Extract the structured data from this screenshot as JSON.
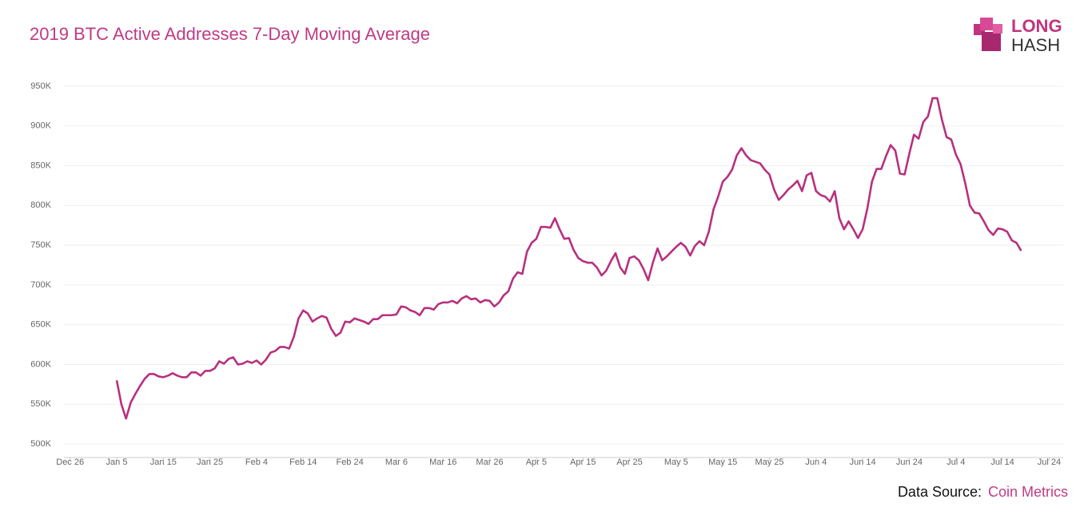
{
  "chart_data": {
    "type": "line",
    "title": "2019 BTC Active Addresses 7-Day Moving Average",
    "logo": [
      "LONG",
      "HASH"
    ],
    "source_label": "Data Source:",
    "source_name": "Coin Metrics",
    "grid": true,
    "ylim": [
      483000,
      960000
    ],
    "yticks": [
      {
        "value": 500000,
        "label": "500K"
      },
      {
        "value": 550000,
        "label": "550K"
      },
      {
        "value": 600000,
        "label": "600K"
      },
      {
        "value": 650000,
        "label": "650K"
      },
      {
        "value": 700000,
        "label": "700K"
      },
      {
        "value": 750000,
        "label": "750K"
      },
      {
        "value": 800000,
        "label": "800K"
      },
      {
        "value": 850000,
        "label": "850K"
      },
      {
        "value": 900000,
        "label": "900K"
      },
      {
        "value": 950000,
        "label": "950K"
      }
    ],
    "xticks": [
      "Dec 26",
      "Jan 5",
      "Jan 15",
      "Jan 25",
      "Feb 4",
      "Feb 14",
      "Feb 24",
      "Mar 6",
      "Mar 16",
      "Mar 26",
      "Apr 5",
      "Apr 15",
      "Apr 25",
      "May 5",
      "May 15",
      "May 25",
      "Jun 4",
      "Jun 14",
      "Jun 24",
      "Jul 4",
      "Jul 14",
      "Jul 24"
    ],
    "x": [
      "Jan 5",
      "Jan 6",
      "Jan 7",
      "Jan 8",
      "Jan 9",
      "Jan 10",
      "Jan 11",
      "Jan 12",
      "Jan 13",
      "Jan 14",
      "Jan 15",
      "Jan 16",
      "Jan 17",
      "Jan 18",
      "Jan 19",
      "Jan 20",
      "Jan 21",
      "Jan 22",
      "Jan 23",
      "Jan 24",
      "Jan 25",
      "Jan 26",
      "Jan 27",
      "Jan 28",
      "Jan 29",
      "Jan 30",
      "Jan 31",
      "Feb 1",
      "Feb 2",
      "Feb 3",
      "Feb 4",
      "Feb 5",
      "Feb 6",
      "Feb 7",
      "Feb 8",
      "Feb 9",
      "Feb 10",
      "Feb 11",
      "Feb 12",
      "Feb 13",
      "Feb 14",
      "Feb 15",
      "Feb 16",
      "Feb 17",
      "Feb 18",
      "Feb 19",
      "Feb 20",
      "Feb 21",
      "Feb 22",
      "Feb 23",
      "Feb 24",
      "Feb 25",
      "Feb 26",
      "Feb 27",
      "Feb 28",
      "Mar 1",
      "Mar 2",
      "Mar 3",
      "Mar 4",
      "Mar 5",
      "Mar 6",
      "Mar 7",
      "Mar 8",
      "Mar 9",
      "Mar 10",
      "Mar 11",
      "Mar 12",
      "Mar 13",
      "Mar 14",
      "Mar 15",
      "Mar 16",
      "Mar 17",
      "Mar 18",
      "Mar 19",
      "Mar 20",
      "Mar 21",
      "Mar 22",
      "Mar 23",
      "Mar 24",
      "Mar 25",
      "Mar 26",
      "Mar 27",
      "Mar 28",
      "Mar 29",
      "Mar 30",
      "Mar 31",
      "Apr 1",
      "Apr 2",
      "Apr 3",
      "Apr 4",
      "Apr 5",
      "Apr 6",
      "Apr 7",
      "Apr 8",
      "Apr 9",
      "Apr 10",
      "Apr 11",
      "Apr 12",
      "Apr 13",
      "Apr 14",
      "Apr 15",
      "Apr 16",
      "Apr 17",
      "Apr 18",
      "Apr 19",
      "Apr 20",
      "Apr 21",
      "Apr 22",
      "Apr 23",
      "Apr 24",
      "Apr 25",
      "Apr 26",
      "Apr 27",
      "Apr 28",
      "Apr 29",
      "Apr 30",
      "May 1",
      "May 2",
      "May 3",
      "May 4",
      "May 5",
      "May 6",
      "May 7",
      "May 8",
      "May 9",
      "May 10",
      "May 11",
      "May 12",
      "May 13",
      "May 14",
      "May 15",
      "May 16",
      "May 17",
      "May 18",
      "May 19",
      "May 20",
      "May 21",
      "May 22",
      "May 23",
      "May 24",
      "May 25",
      "May 26",
      "May 27",
      "May 28",
      "May 29",
      "May 30",
      "May 31",
      "Jun 1",
      "Jun 2",
      "Jun 3",
      "Jun 4",
      "Jun 5",
      "Jun 6",
      "Jun 7",
      "Jun 8",
      "Jun 9",
      "Jun 10",
      "Jun 11",
      "Jun 12",
      "Jun 13",
      "Jun 14",
      "Jun 15",
      "Jun 16",
      "Jun 17",
      "Jun 18",
      "Jun 19",
      "Jun 20",
      "Jun 21",
      "Jun 22",
      "Jun 23",
      "Jun 24",
      "Jun 25",
      "Jun 26",
      "Jun 27",
      "Jun 28",
      "Jun 29",
      "Jun 30",
      "Jul 1",
      "Jul 2",
      "Jul 3",
      "Jul 4",
      "Jul 5",
      "Jul 6",
      "Jul 7",
      "Jul 8",
      "Jul 9",
      "Jul 10",
      "Jul 11",
      "Jul 12",
      "Jul 13",
      "Jul 14",
      "Jul 15",
      "Jul 16",
      "Jul 17",
      "Jul 18"
    ],
    "series": [
      {
        "color": "#b8307e",
        "values": [
          580000,
          550000,
          532000,
          552000,
          563000,
          573000,
          582000,
          588000,
          588000,
          585000,
          584000,
          586000,
          589000,
          586000,
          584000,
          584000,
          590000,
          590000,
          586000,
          592000,
          592000,
          595000,
          604000,
          601000,
          607000,
          609000,
          600000,
          601000,
          604000,
          602000,
          605000,
          600000,
          606000,
          615000,
          617000,
          622000,
          622000,
          620000,
          635000,
          658000,
          668000,
          664000,
          654000,
          658000,
          661000,
          659000,
          645000,
          636000,
          640000,
          654000,
          653000,
          658000,
          656000,
          654000,
          651000,
          657000,
          657000,
          662000,
          662000,
          662000,
          663000,
          673000,
          672000,
          668000,
          666000,
          662000,
          671000,
          671000,
          669000,
          676000,
          678000,
          678000,
          680000,
          677000,
          683000,
          686000,
          682000,
          683000,
          678000,
          681000,
          680000,
          673000,
          678000,
          687000,
          692000,
          708000,
          716000,
          714000,
          742000,
          753000,
          758000,
          773000,
          773000,
          772000,
          784000,
          770000,
          758000,
          759000,
          744000,
          734000,
          730000,
          728000,
          728000,
          722000,
          712000,
          718000,
          730000,
          740000,
          722000,
          714000,
          734000,
          736000,
          731000,
          720000,
          706000,
          728000,
          746000,
          731000,
          736000,
          742000,
          748000,
          753000,
          748000,
          737000,
          749000,
          755000,
          750000,
          767000,
          795000,
          811000,
          830000,
          836000,
          845000,
          863000,
          872000,
          863000,
          857000,
          855000,
          853000,
          845000,
          839000,
          820000,
          807000,
          813000,
          820000,
          825000,
          831000,
          818000,
          838000,
          841000,
          818000,
          813000,
          811000,
          805000,
          818000,
          784000,
          770000,
          780000,
          770000,
          759000,
          770000,
          796000,
          830000,
          846000,
          846000,
          862000,
          876000,
          869000,
          840000,
          839000,
          865000,
          889000,
          884000,
          905000,
          912000,
          935000,
          935000,
          908000,
          886000,
          883000,
          864000,
          852000,
          828000,
          800000,
          791000,
          790000,
          780000,
          769000,
          763000,
          771000,
          770000,
          767000,
          756000,
          753000,
          743000
        ]
      }
    ]
  }
}
